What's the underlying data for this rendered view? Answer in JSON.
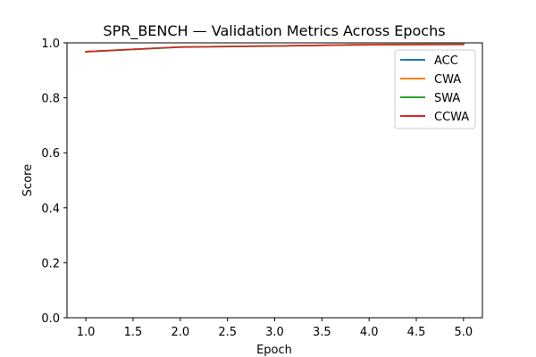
{
  "chart_data": {
    "type": "line",
    "title": "SPR_BENCH — Validation Metrics Across Epochs",
    "xlabel": "Epoch",
    "ylabel": "Score",
    "xlim": [
      0.8,
      5.2
    ],
    "ylim": [
      0.0,
      1.0
    ],
    "x_ticks": [
      "1.0",
      "1.5",
      "2.0",
      "2.5",
      "3.0",
      "3.5",
      "4.0",
      "4.5",
      "5.0"
    ],
    "y_ticks": [
      "0.0",
      "0.2",
      "0.4",
      "0.6",
      "0.8",
      "1.0"
    ],
    "x": [
      1,
      2,
      3,
      4,
      5
    ],
    "series": [
      {
        "name": "ACC",
        "color": "#1f77b4",
        "values": [
          0.968,
          0.985,
          0.989,
          0.994,
          0.995
        ]
      },
      {
        "name": "CWA",
        "color": "#ff7f0e",
        "values": [
          0.968,
          0.985,
          0.989,
          0.994,
          0.995
        ]
      },
      {
        "name": "SWA",
        "color": "#2ca02c",
        "values": [
          0.967,
          0.984,
          0.988,
          0.993,
          0.994
        ]
      },
      {
        "name": "CCWA",
        "color": "#d62728",
        "values": [
          0.968,
          0.985,
          0.989,
          0.993,
          0.994
        ]
      }
    ],
    "legend_position": "upper right",
    "grid": false
  }
}
